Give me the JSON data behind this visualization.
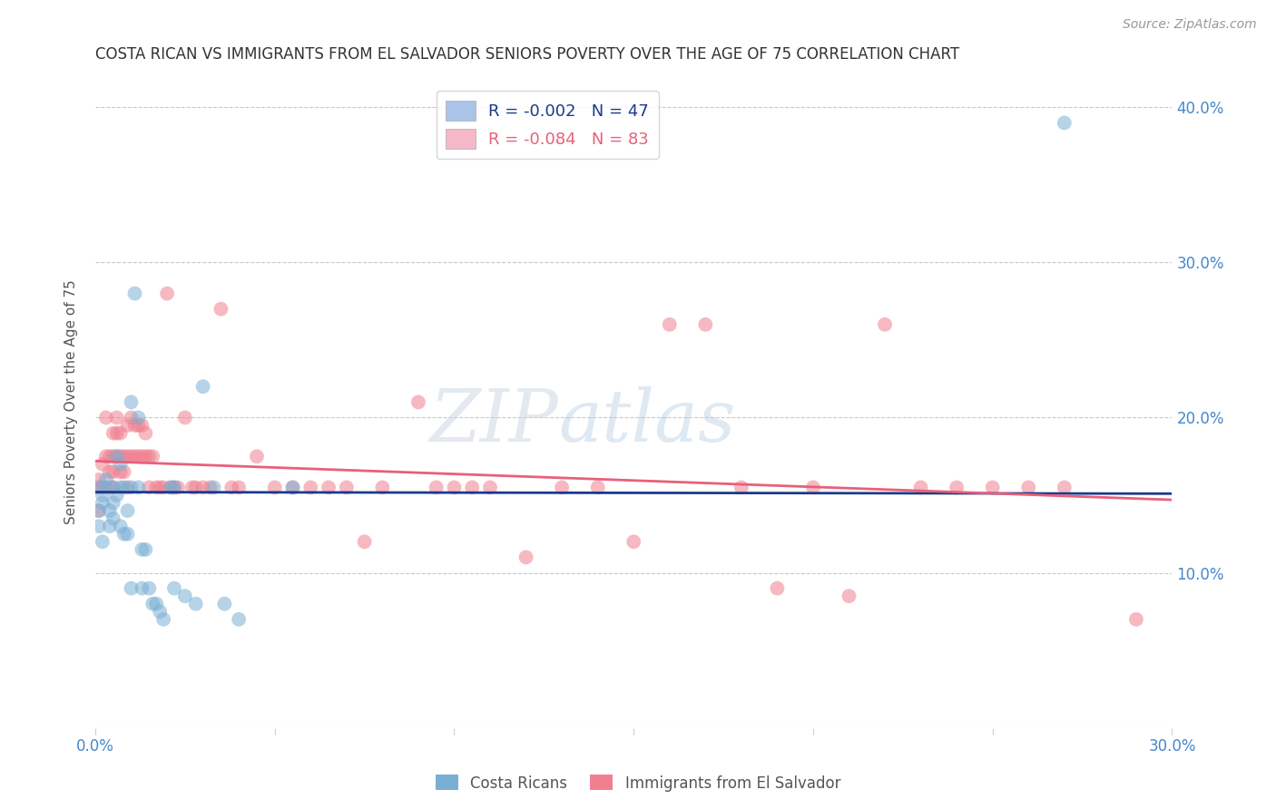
{
  "title": "COSTA RICAN VS IMMIGRANTS FROM EL SALVADOR SENIORS POVERTY OVER THE AGE OF 75 CORRELATION CHART",
  "source": "Source: ZipAtlas.com",
  "ylabel": "Seniors Poverty Over the Age of 75",
  "xlim": [
    0,
    0.3
  ],
  "ylim": [
    0,
    0.42
  ],
  "xticks": [
    0.0,
    0.05,
    0.1,
    0.15,
    0.2,
    0.25,
    0.3
  ],
  "yticks": [
    0.0,
    0.1,
    0.2,
    0.3,
    0.4
  ],
  "xtick_labels": [
    "0.0%",
    "",
    "",
    "",
    "",
    "",
    "30.0%"
  ],
  "ytick_labels_right": [
    "",
    "10.0%",
    "20.0%",
    "30.0%",
    "40.0%"
  ],
  "background_color": "#ffffff",
  "grid_color": "#c8c8c8",
  "watermark": "ZIPatlas",
  "legend_label_blue": "R = -0.002   N = 47",
  "legend_label_pink": "R = -0.084   N = 83",
  "legend_color_blue": "#aac4e8",
  "legend_color_pink": "#f4b8c8",
  "dot_color_blue": "#7aafd4",
  "dot_color_pink": "#f08090",
  "line_color_blue": "#1a3a8c",
  "line_color_pink": "#e8607a",
  "title_color": "#333333",
  "axis_label_color": "#555555",
  "tick_color_right": "#4488cc",
  "tick_color_bottom": "#4488cc",
  "blue_points_x": [
    0.001,
    0.001,
    0.001,
    0.002,
    0.002,
    0.002,
    0.003,
    0.003,
    0.004,
    0.004,
    0.005,
    0.005,
    0.005,
    0.006,
    0.006,
    0.007,
    0.007,
    0.007,
    0.008,
    0.008,
    0.009,
    0.009,
    0.01,
    0.01,
    0.01,
    0.011,
    0.012,
    0.012,
    0.013,
    0.013,
    0.014,
    0.015,
    0.016,
    0.017,
    0.018,
    0.019,
    0.021,
    0.022,
    0.022,
    0.025,
    0.028,
    0.03,
    0.033,
    0.036,
    0.04,
    0.055,
    0.27
  ],
  "blue_points_y": [
    0.155,
    0.14,
    0.13,
    0.15,
    0.145,
    0.12,
    0.16,
    0.155,
    0.14,
    0.13,
    0.155,
    0.145,
    0.135,
    0.175,
    0.15,
    0.17,
    0.155,
    0.13,
    0.155,
    0.125,
    0.14,
    0.125,
    0.21,
    0.155,
    0.09,
    0.28,
    0.2,
    0.155,
    0.115,
    0.09,
    0.115,
    0.09,
    0.08,
    0.08,
    0.075,
    0.07,
    0.155,
    0.155,
    0.09,
    0.085,
    0.08,
    0.22,
    0.155,
    0.08,
    0.07,
    0.155,
    0.39
  ],
  "pink_points_x": [
    0.001,
    0.001,
    0.001,
    0.002,
    0.002,
    0.003,
    0.003,
    0.004,
    0.004,
    0.004,
    0.005,
    0.005,
    0.005,
    0.005,
    0.006,
    0.006,
    0.006,
    0.007,
    0.007,
    0.007,
    0.008,
    0.008,
    0.009,
    0.009,
    0.009,
    0.01,
    0.01,
    0.011,
    0.011,
    0.012,
    0.012,
    0.013,
    0.013,
    0.014,
    0.014,
    0.015,
    0.015,
    0.016,
    0.017,
    0.018,
    0.019,
    0.02,
    0.021,
    0.022,
    0.023,
    0.025,
    0.027,
    0.028,
    0.03,
    0.032,
    0.035,
    0.038,
    0.04,
    0.045,
    0.05,
    0.055,
    0.06,
    0.065,
    0.07,
    0.075,
    0.08,
    0.09,
    0.095,
    0.1,
    0.105,
    0.11,
    0.12,
    0.13,
    0.14,
    0.15,
    0.16,
    0.17,
    0.18,
    0.19,
    0.2,
    0.21,
    0.22,
    0.23,
    0.24,
    0.25,
    0.26,
    0.27,
    0.29
  ],
  "pink_points_y": [
    0.16,
    0.155,
    0.14,
    0.17,
    0.155,
    0.2,
    0.175,
    0.175,
    0.165,
    0.155,
    0.19,
    0.175,
    0.165,
    0.155,
    0.2,
    0.19,
    0.175,
    0.19,
    0.175,
    0.165,
    0.175,
    0.165,
    0.195,
    0.175,
    0.155,
    0.2,
    0.175,
    0.195,
    0.175,
    0.195,
    0.175,
    0.195,
    0.175,
    0.19,
    0.175,
    0.175,
    0.155,
    0.175,
    0.155,
    0.155,
    0.155,
    0.28,
    0.155,
    0.155,
    0.155,
    0.2,
    0.155,
    0.155,
    0.155,
    0.155,
    0.27,
    0.155,
    0.155,
    0.175,
    0.155,
    0.155,
    0.155,
    0.155,
    0.155,
    0.12,
    0.155,
    0.21,
    0.155,
    0.155,
    0.155,
    0.155,
    0.11,
    0.155,
    0.155,
    0.12,
    0.26,
    0.26,
    0.155,
    0.09,
    0.155,
    0.085,
    0.26,
    0.155,
    0.155,
    0.155,
    0.155,
    0.155,
    0.07
  ],
  "blue_line_x": [
    0.0,
    0.3
  ],
  "blue_line_y": [
    0.152,
    0.151
  ],
  "pink_line_x": [
    0.0,
    0.3
  ],
  "pink_line_y": [
    0.172,
    0.147
  ],
  "figsize": [
    14.06,
    8.92
  ],
  "dpi": 100
}
